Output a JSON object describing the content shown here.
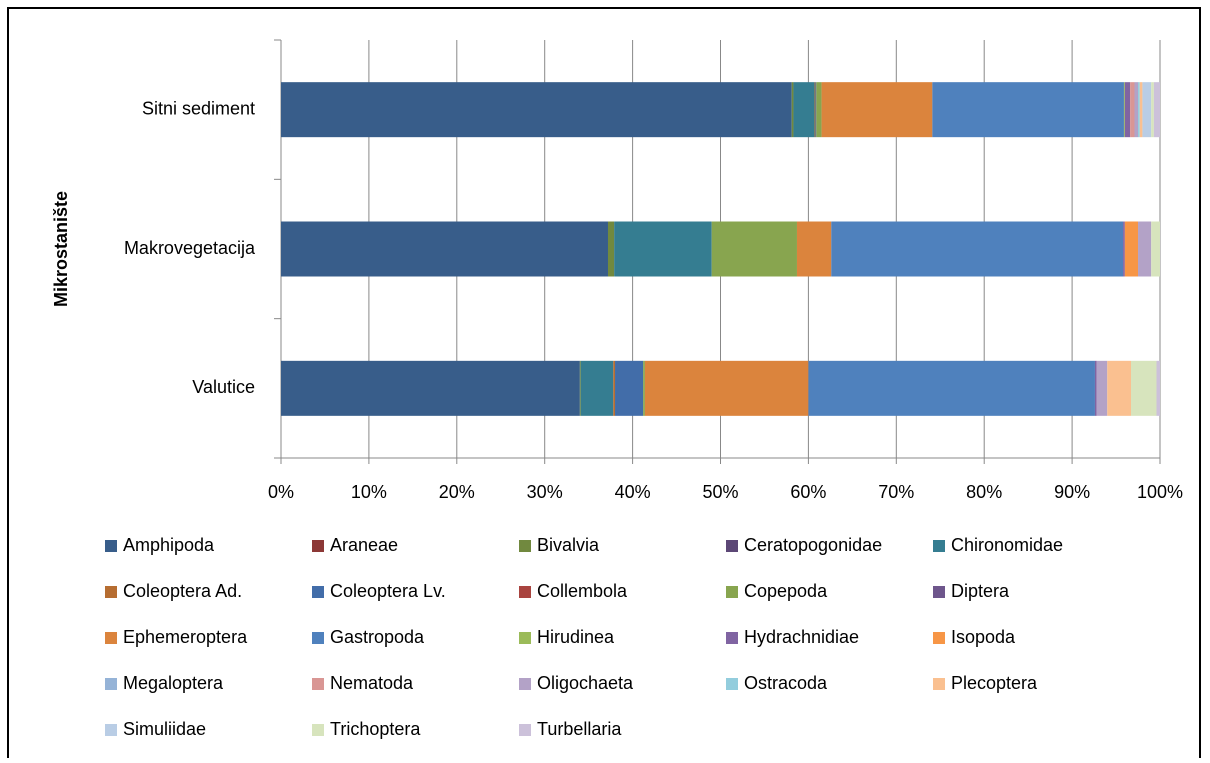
{
  "chart_data": {
    "type": "stacked-bar-horizontal-100",
    "y_axis_label": "Mikrostanište",
    "categories": [
      "Sitni sediment",
      "Makrovegetacija",
      "Valutice"
    ],
    "xlim": [
      0,
      100
    ],
    "xticks": [
      {
        "value": 0,
        "label": "0%"
      },
      {
        "value": 10,
        "label": "10%"
      },
      {
        "value": 20,
        "label": "20%"
      },
      {
        "value": 30,
        "label": "30%"
      },
      {
        "value": 40,
        "label": "40%"
      },
      {
        "value": 50,
        "label": "50%"
      },
      {
        "value": 60,
        "label": "60%"
      },
      {
        "value": 70,
        "label": "70%"
      },
      {
        "value": 80,
        "label": "80%"
      },
      {
        "value": 90,
        "label": "90%"
      },
      {
        "value": 100,
        "label": "100%"
      }
    ],
    "grid": true,
    "legend": "bottom",
    "series": [
      {
        "name": "Amphipoda",
        "color": "#385d8a",
        "values": [
          58.1,
          37.2,
          34.0
        ]
      },
      {
        "name": "Araneae",
        "color": "#8c3836",
        "values": [
          0,
          0,
          0
        ]
      },
      {
        "name": "Bivalvia",
        "color": "#71893f",
        "values": [
          0.2,
          0.7,
          0.1
        ]
      },
      {
        "name": "Ceratopogonidae",
        "color": "#5c4776",
        "values": [
          0,
          0,
          0
        ]
      },
      {
        "name": "Chironomidae",
        "color": "#357d91",
        "values": [
          2.4,
          11.1,
          3.7
        ]
      },
      {
        "name": "Coleoptera Ad.",
        "color": "#b66d31",
        "values": [
          0.1,
          0,
          0.2
        ]
      },
      {
        "name": "Coleoptera Lv.",
        "color": "#426da9",
        "values": [
          0.1,
          0,
          3.2
        ]
      },
      {
        "name": "Collembola",
        "color": "#a9443f",
        "values": [
          0,
          0,
          0
        ]
      },
      {
        "name": "Copepoda",
        "color": "#88a54f",
        "values": [
          0.6,
          9.7,
          0.2
        ]
      },
      {
        "name": "Diptera",
        "color": "#6e568c",
        "values": [
          0,
          0,
          0
        ]
      },
      {
        "name": "Ephemeroptera",
        "color": "#db843d",
        "values": [
          12.6,
          3.9,
          18.6
        ]
      },
      {
        "name": "Gastropoda",
        "color": "#4f81bd",
        "values": [
          21.8,
          33.2,
          32.6
        ]
      },
      {
        "name": "Hirudinea",
        "color": "#9bbb59",
        "values": [
          0.1,
          0,
          0
        ]
      },
      {
        "name": "Hydrachnidiae",
        "color": "#8064a2",
        "values": [
          0.6,
          0.2,
          0.2
        ]
      },
      {
        "name": "Isopoda",
        "color": "#f79646",
        "values": [
          0,
          1.5,
          0
        ]
      },
      {
        "name": "Megaloptera",
        "color": "#95b3d7",
        "values": [
          0,
          0,
          0
        ]
      },
      {
        "name": "Nematoda",
        "color": "#d99694",
        "values": [
          0.5,
          0,
          0
        ]
      },
      {
        "name": "Oligochaeta",
        "color": "#b3a2c7",
        "values": [
          0.4,
          1.5,
          1.2
        ]
      },
      {
        "name": "Ostracoda",
        "color": "#93cddd",
        "values": [
          0.2,
          0,
          0
        ]
      },
      {
        "name": "Plecoptera",
        "color": "#fac090",
        "values": [
          0.3,
          0,
          2.7
        ]
      },
      {
        "name": "Simuliidae",
        "color": "#b9cde5",
        "values": [
          1.0,
          0,
          0
        ]
      },
      {
        "name": "Trichoptera",
        "color": "#d7e4bd",
        "values": [
          0.3,
          1.0,
          2.9
        ]
      },
      {
        "name": "Turbellaria",
        "color": "#ccc1da",
        "values": [
          0.7,
          0,
          0.4
        ]
      }
    ]
  }
}
